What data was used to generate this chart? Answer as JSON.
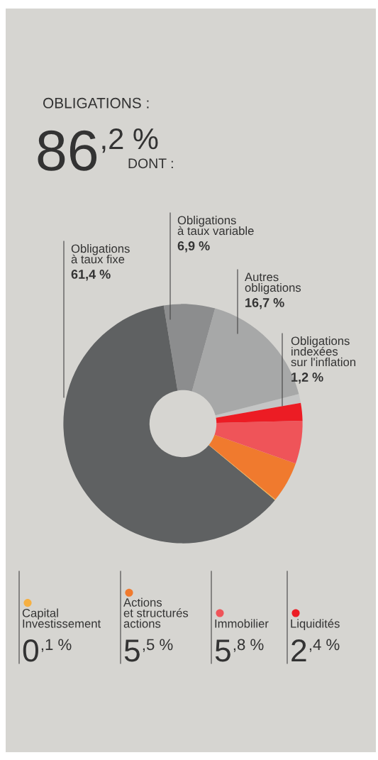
{
  "chart_data": {
    "type": "donut",
    "categories": [
      "Obligations\nindexées\nsur l'inflation",
      "Autres\nobligations",
      "Obligations\nà taux variable",
      "Obligations\nà taux fixe",
      "Capital\nInvestissement",
      "Actions\net structurés\nactions",
      "Immobilier",
      "Liquidités"
    ],
    "values": [
      1.2,
      16.7,
      6.9,
      61.4,
      0.1,
      5.5,
      5.8,
      2.4
    ],
    "colors": [
      "#c4c5c5",
      "#a7a8a8",
      "#8c8d8e",
      "#5f6162",
      "#f6b042",
      "#f07a2e",
      "#ef5459",
      "#ec1c24"
    ],
    "value_labels": [
      "1,2 %",
      "16,7 %",
      "6,9 %",
      "61,4 %",
      "0,1 %",
      "5,5 %",
      "5,8 %",
      "2,4 %"
    ],
    "annotations": [
      "OBLIGATIONS :",
      "86,2 %",
      "DONT :"
    ],
    "legend": "bottom"
  }
}
